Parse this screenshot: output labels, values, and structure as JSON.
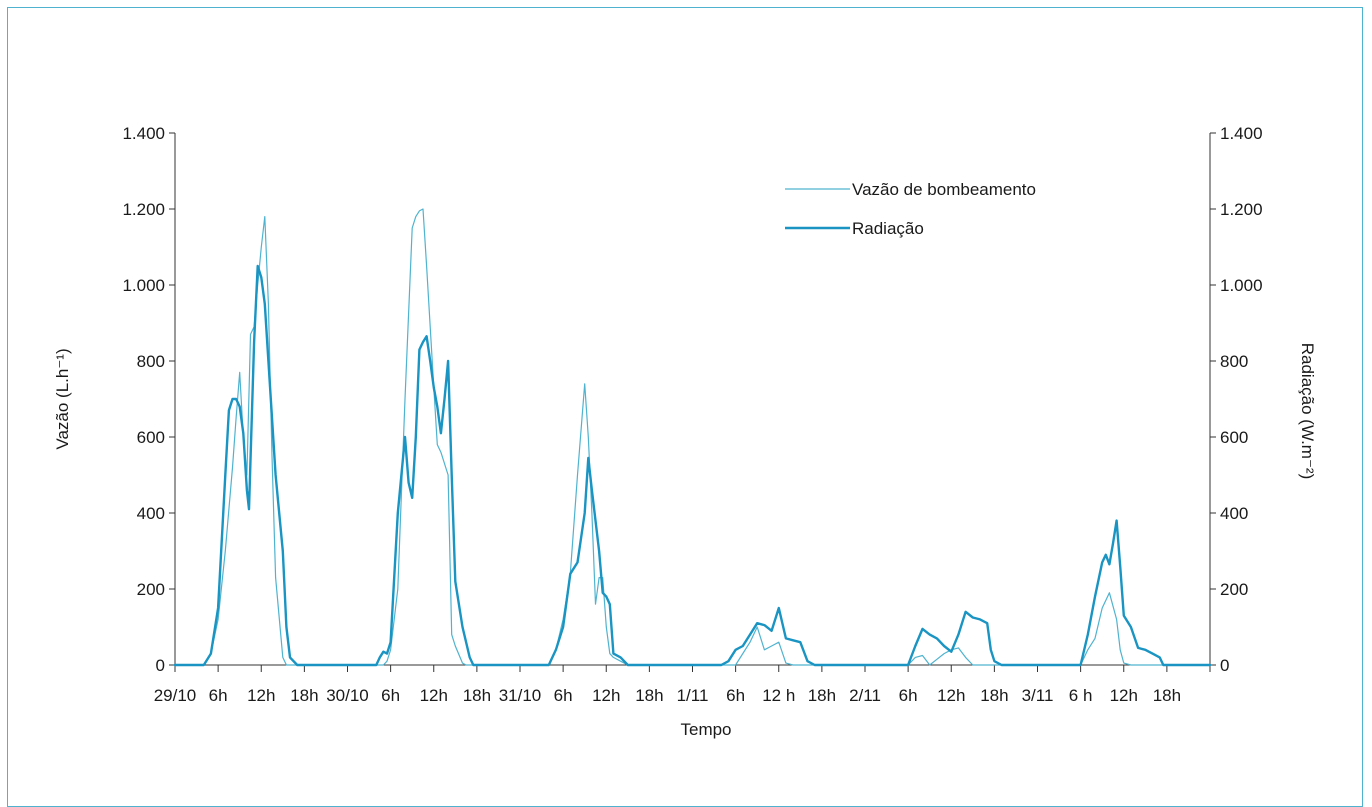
{
  "chart_data": {
    "type": "line",
    "xlabel": "Tempo",
    "ylabel_left": "Vazão (L.h⁻¹)",
    "ylabel_right": "Radiação (W.m⁻²)",
    "ylim": [
      0,
      1400
    ],
    "yticks": [
      0,
      200,
      400,
      600,
      800,
      1000,
      1200,
      1400
    ],
    "ytick_labels": [
      "0",
      "200",
      "400",
      "600",
      "800",
      "1.000",
      "1.200",
      "1.400"
    ],
    "xlim": [
      0,
      144
    ],
    "x_unit": "hours since 29/10 00h",
    "xticks": [
      {
        "x": 0,
        "label": "29/10"
      },
      {
        "x": 6,
        "label": "6h"
      },
      {
        "x": 12,
        "label": "12h"
      },
      {
        "x": 18,
        "label": "18h"
      },
      {
        "x": 24,
        "label": "30/10"
      },
      {
        "x": 30,
        "label": "6h"
      },
      {
        "x": 36,
        "label": "12h"
      },
      {
        "x": 42,
        "label": "18h"
      },
      {
        "x": 48,
        "label": "31/10"
      },
      {
        "x": 54,
        "label": "6h"
      },
      {
        "x": 60,
        "label": "12h"
      },
      {
        "x": 66,
        "label": "18h"
      },
      {
        "x": 72,
        "label": "1/11"
      },
      {
        "x": 78,
        "label": "6h"
      },
      {
        "x": 84,
        "label": "12 h"
      },
      {
        "x": 90,
        "label": "18h"
      },
      {
        "x": 96,
        "label": "2/11"
      },
      {
        "x": 102,
        "label": "6h"
      },
      {
        "x": 108,
        "label": "12h"
      },
      {
        "x": 114,
        "label": "18h"
      },
      {
        "x": 120,
        "label": "3/11"
      },
      {
        "x": 126,
        "label": "6 h"
      },
      {
        "x": 132,
        "label": "12h"
      },
      {
        "x": 138,
        "label": "18h"
      }
    ],
    "legend_position": "top-right",
    "series": [
      {
        "name": "Vazão de bombeamento",
        "color": "#4fb3cf",
        "width": 1.2,
        "points": [
          [
            0,
            0
          ],
          [
            4,
            0
          ],
          [
            5,
            30
          ],
          [
            6,
            120
          ],
          [
            7,
            300
          ],
          [
            8,
            520
          ],
          [
            8.5,
            650
          ],
          [
            9,
            770
          ],
          [
            9.5,
            600
          ],
          [
            10,
            500
          ],
          [
            10.5,
            870
          ],
          [
            11,
            890
          ],
          [
            11.5,
            1000
          ],
          [
            12,
            1100
          ],
          [
            12.5,
            1180
          ],
          [
            13,
            950
          ],
          [
            13.5,
            550
          ],
          [
            14,
            230
          ],
          [
            15,
            20
          ],
          [
            15.5,
            0
          ],
          [
            24,
            0
          ],
          [
            29,
            0
          ],
          [
            29.5,
            10
          ],
          [
            30,
            40
          ],
          [
            31,
            200
          ],
          [
            32,
            700
          ],
          [
            33,
            1150
          ],
          [
            33.5,
            1180
          ],
          [
            34,
            1195
          ],
          [
            34.5,
            1200
          ],
          [
            35,
            1050
          ],
          [
            36,
            730
          ],
          [
            36.5,
            580
          ],
          [
            37,
            560
          ],
          [
            38,
            500
          ],
          [
            38.5,
            80
          ],
          [
            39,
            50
          ],
          [
            40,
            5
          ],
          [
            40.5,
            0
          ],
          [
            48,
            0
          ],
          [
            52,
            0
          ],
          [
            53,
            40
          ],
          [
            54,
            120
          ],
          [
            55,
            240
          ],
          [
            56,
            500
          ],
          [
            57,
            740
          ],
          [
            57.5,
            600
          ],
          [
            58,
            400
          ],
          [
            58.5,
            160
          ],
          [
            59,
            230
          ],
          [
            59.5,
            230
          ],
          [
            60,
            100
          ],
          [
            60.5,
            30
          ],
          [
            61,
            20
          ],
          [
            62,
            10
          ],
          [
            63,
            0
          ],
          [
            76,
            0
          ],
          [
            78,
            0
          ],
          [
            80,
            60
          ],
          [
            81,
            100
          ],
          [
            82,
            40
          ],
          [
            83,
            50
          ],
          [
            84,
            60
          ],
          [
            85,
            5
          ],
          [
            86,
            0
          ],
          [
            100,
            0
          ],
          [
            102,
            0
          ],
          [
            103,
            20
          ],
          [
            104,
            25
          ],
          [
            105,
            0
          ],
          [
            106,
            15
          ],
          [
            107,
            30
          ],
          [
            108,
            40
          ],
          [
            109,
            45
          ],
          [
            110,
            20
          ],
          [
            111,
            0
          ],
          [
            124,
            0
          ],
          [
            126,
            0
          ],
          [
            127,
            40
          ],
          [
            128,
            70
          ],
          [
            129,
            150
          ],
          [
            130,
            190
          ],
          [
            131,
            120
          ],
          [
            131.5,
            40
          ],
          [
            132,
            5
          ],
          [
            133,
            0
          ],
          [
            144,
            0
          ]
        ]
      },
      {
        "name": "Radiação",
        "color": "#1a94c2",
        "width": 2.4,
        "points": [
          [
            0,
            0
          ],
          [
            4,
            0
          ],
          [
            5,
            30
          ],
          [
            6,
            150
          ],
          [
            7,
            500
          ],
          [
            7.5,
            670
          ],
          [
            8,
            700
          ],
          [
            8.5,
            700
          ],
          [
            9,
            680
          ],
          [
            9.5,
            610
          ],
          [
            10,
            460
          ],
          [
            10.3,
            410
          ],
          [
            11,
            850
          ],
          [
            11.5,
            1050
          ],
          [
            12,
            1020
          ],
          [
            12.5,
            950
          ],
          [
            13,
            800
          ],
          [
            14,
            500
          ],
          [
            15,
            300
          ],
          [
            15.5,
            100
          ],
          [
            16,
            20
          ],
          [
            17,
            0
          ],
          [
            24,
            0
          ],
          [
            28,
            0
          ],
          [
            28.5,
            20
          ],
          [
            29,
            35
          ],
          [
            29.5,
            30
          ],
          [
            30,
            60
          ],
          [
            31,
            400
          ],
          [
            32,
            600
          ],
          [
            32.5,
            480
          ],
          [
            33,
            440
          ],
          [
            33.5,
            600
          ],
          [
            34,
            830
          ],
          [
            34.5,
            850
          ],
          [
            35,
            865
          ],
          [
            35.5,
            800
          ],
          [
            36,
            730
          ],
          [
            36.5,
            680
          ],
          [
            37,
            610
          ],
          [
            37.5,
            700
          ],
          [
            38,
            800
          ],
          [
            38.5,
            500
          ],
          [
            39,
            220
          ],
          [
            40,
            100
          ],
          [
            41,
            20
          ],
          [
            41.5,
            0
          ],
          [
            48,
            0
          ],
          [
            52,
            0
          ],
          [
            53,
            40
          ],
          [
            54,
            100
          ],
          [
            55,
            240
          ],
          [
            56,
            270
          ],
          [
            57,
            400
          ],
          [
            57.5,
            545
          ],
          [
            58,
            460
          ],
          [
            59,
            300
          ],
          [
            59.5,
            190
          ],
          [
            60,
            180
          ],
          [
            60.5,
            160
          ],
          [
            61,
            30
          ],
          [
            62,
            20
          ],
          [
            63,
            0
          ],
          [
            76,
            0
          ],
          [
            77,
            10
          ],
          [
            78,
            40
          ],
          [
            79,
            50
          ],
          [
            80,
            80
          ],
          [
            81,
            110
          ],
          [
            82,
            105
          ],
          [
            83,
            90
          ],
          [
            84,
            150
          ],
          [
            85,
            70
          ],
          [
            86,
            65
          ],
          [
            87,
            60
          ],
          [
            88,
            10
          ],
          [
            89,
            0
          ],
          [
            100,
            0
          ],
          [
            102,
            0
          ],
          [
            103,
            50
          ],
          [
            104,
            95
          ],
          [
            105,
            80
          ],
          [
            106,
            70
          ],
          [
            107,
            50
          ],
          [
            108,
            35
          ],
          [
            109,
            80
          ],
          [
            110,
            140
          ],
          [
            111,
            125
          ],
          [
            112,
            120
          ],
          [
            113,
            110
          ],
          [
            113.5,
            40
          ],
          [
            114,
            10
          ],
          [
            115,
            0
          ],
          [
            124,
            0
          ],
          [
            126,
            0
          ],
          [
            127,
            80
          ],
          [
            128,
            180
          ],
          [
            129,
            270
          ],
          [
            129.5,
            290
          ],
          [
            130,
            265
          ],
          [
            130.5,
            320
          ],
          [
            131,
            380
          ],
          [
            131.5,
            260
          ],
          [
            132,
            130
          ],
          [
            133,
            100
          ],
          [
            134,
            45
          ],
          [
            135,
            40
          ],
          [
            136,
            30
          ],
          [
            137,
            20
          ],
          [
            137.5,
            0
          ],
          [
            144,
            0
          ]
        ]
      }
    ]
  }
}
